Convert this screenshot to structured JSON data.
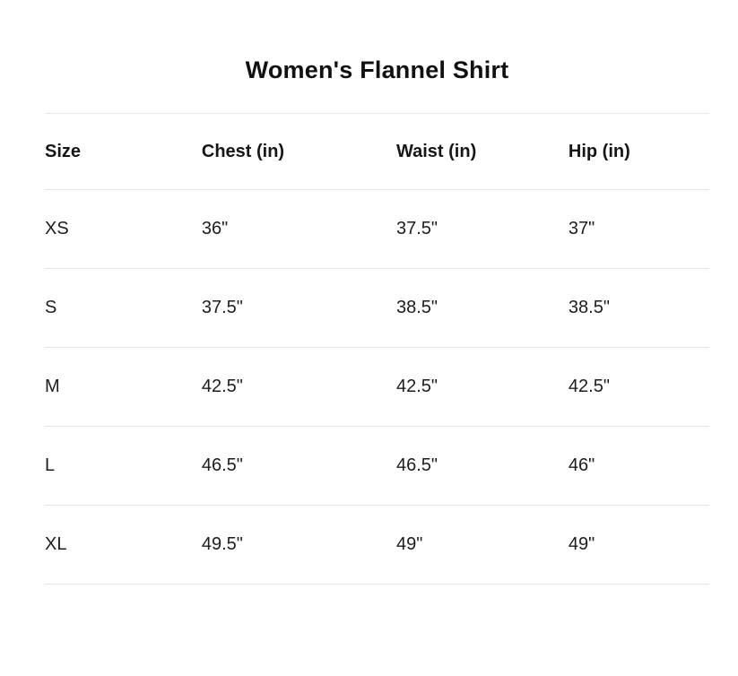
{
  "chart_data": {
    "type": "table",
    "title": "Women's Flannel Shirt",
    "columns": [
      "Size",
      "Chest (in)",
      "Waist (in)",
      "Hip (in)"
    ],
    "rows": [
      [
        "XS",
        "36\"",
        "37.5\"",
        "37\""
      ],
      [
        "S",
        "37.5\"",
        "38.5\"",
        "38.5\""
      ],
      [
        "M",
        "42.5\"",
        "42.5\"",
        "42.5\""
      ],
      [
        "L",
        "46.5\"",
        "46.5\"",
        "46\""
      ],
      [
        "XL",
        "49.5\"",
        "49\"",
        "49\""
      ]
    ]
  },
  "colors": {
    "text": "#1d1d1d",
    "title_text": "#111111",
    "divider": "#e5e5e5",
    "background": "#ffffff"
  }
}
